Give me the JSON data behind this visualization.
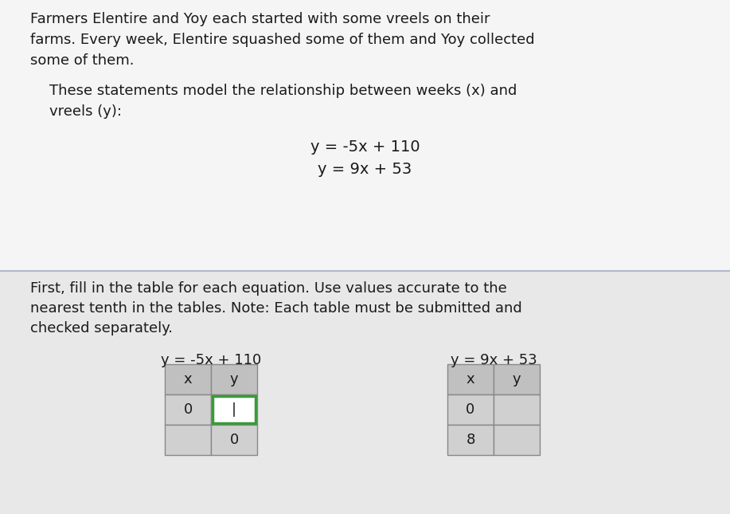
{
  "background_color": "#f0f0f0",
  "top_section_bg": "#f5f5f5",
  "bottom_section_bg": "#e8e8e8",
  "divider_color": "#b0b8cc",
  "text_color": "#1a1a1a",
  "eq1": "y = -5x + 110",
  "eq2": "y = 9x + 53",
  "table1_label": "y = -5x + 110",
  "table2_label": "y = 9x + 53",
  "table1_headers": [
    "x",
    "y"
  ],
  "table1_row1": [
    "0",
    "|"
  ],
  "table1_row2": [
    "",
    "0"
  ],
  "table2_headers": [
    "x",
    "y"
  ],
  "table2_row1": [
    "0",
    ""
  ],
  "table2_row2": [
    "8",
    ""
  ],
  "header_cell_bg": "#c0c0c0",
  "data_cell_bg": "#d0d0d0",
  "white_cell_bg": "#ffffff",
  "highlight_border_color": "#3a9a3a",
  "font_size_body": 13,
  "font_size_eq": 14,
  "font_size_table_label": 13,
  "font_size_cell": 13,
  "para1_line1": "Farmers Elentire and Yoy each started with some vreels on their",
  "para1_line2": "farms. Every week, Elentire squashed some of them and Yoy collected",
  "para1_line3": "some of them.",
  "para2_line1": "These statements model the relationship between weeks (x) and",
  "para2_line2": "vreels (y):",
  "bottom_line1": "First, fill in the table for each equation. Use values accurate to the",
  "bottom_line2": "nearest tenth in the tables. Note: Each table must be submitted and",
  "bottom_line3": "checked separately."
}
